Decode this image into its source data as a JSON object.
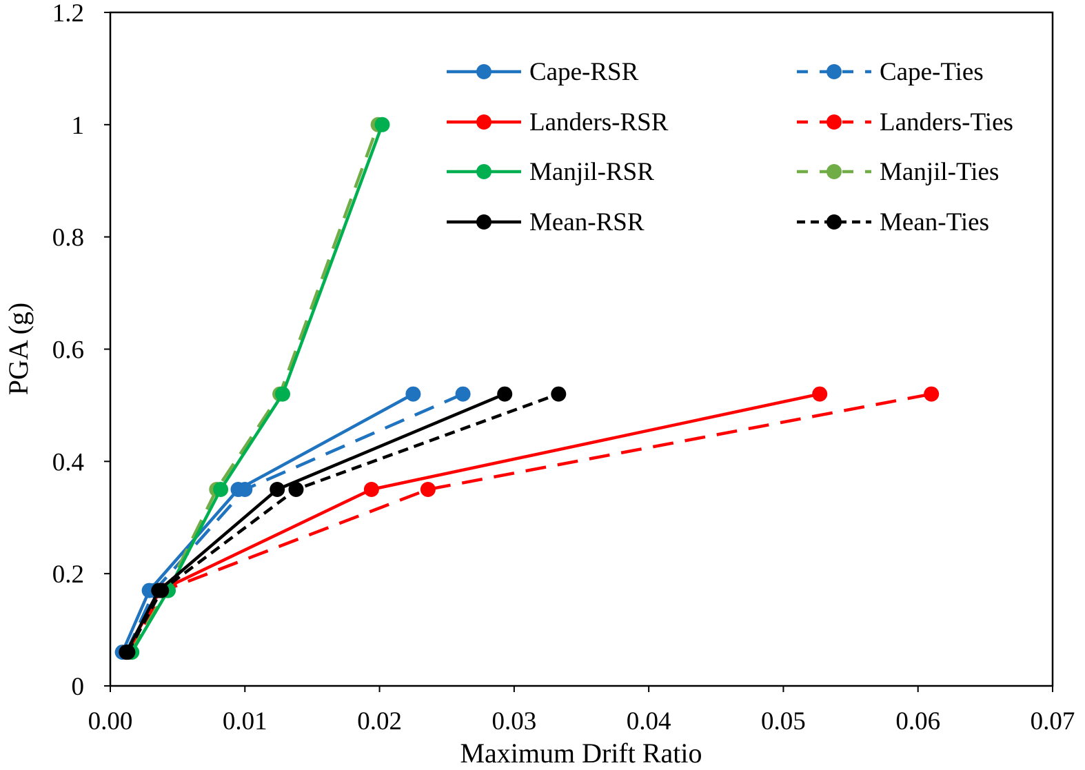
{
  "chart_data": {
    "type": "line",
    "title": "",
    "xlabel": "Maximum Drift Ratio",
    "ylabel": "PGA (g)",
    "xlim": [
      0,
      0.07
    ],
    "ylim": [
      0,
      1.2
    ],
    "x_ticks": [
      "0.00",
      "0.01",
      "0.02",
      "0.03",
      "0.04",
      "0.05",
      "0.06",
      "0.07"
    ],
    "y_ticks": [
      "0",
      "0.2",
      "0.4",
      "0.6",
      "0.8",
      "1",
      "1.2"
    ],
    "x_tick_values": [
      0,
      0.01,
      0.02,
      0.03,
      0.04,
      0.05,
      0.06,
      0.07
    ],
    "y_tick_values": [
      0,
      0.2,
      0.4,
      0.6,
      0.8,
      1.0,
      1.2
    ],
    "grid": false,
    "legend_position": "top-right",
    "series": [
      {
        "name": "Cape-RSR",
        "color": "#1f73bf",
        "dash": "solid",
        "x": [
          0.0009,
          0.0029,
          0.0095,
          0.0225
        ],
        "y": [
          0.06,
          0.17,
          0.35,
          0.52
        ]
      },
      {
        "name": "Cape-Ties",
        "color": "#1f73bf",
        "dash": "dashed",
        "x": [
          0.0012,
          0.0033,
          0.01,
          0.0262
        ],
        "y": [
          0.06,
          0.17,
          0.35,
          0.52
        ]
      },
      {
        "name": "Landers-RSR",
        "color": "#ff0000",
        "dash": "solid",
        "x": [
          0.0012,
          0.0037,
          0.0194,
          0.0527
        ],
        "y": [
          0.06,
          0.17,
          0.35,
          0.52
        ]
      },
      {
        "name": "Landers-Ties",
        "color": "#ff0000",
        "dash": "dashed",
        "x": [
          0.0013,
          0.004,
          0.0236,
          0.061
        ],
        "y": [
          0.06,
          0.17,
          0.35,
          0.52
        ]
      },
      {
        "name": "Manjil-RSR",
        "color": "#00b050",
        "dash": "solid",
        "x": [
          0.0016,
          0.0043,
          0.0082,
          0.0128,
          0.0202
        ],
        "y": [
          0.06,
          0.17,
          0.35,
          0.52,
          1.0
        ]
      },
      {
        "name": "Manjil-Ties",
        "color": "#70ad47",
        "dash": "dashed",
        "x": [
          0.0015,
          0.0042,
          0.0079,
          0.0126,
          0.0199
        ],
        "y": [
          0.06,
          0.17,
          0.35,
          0.52,
          1.0
        ]
      },
      {
        "name": "Mean-RSR",
        "color": "#000000",
        "dash": "solid",
        "x": [
          0.0012,
          0.0036,
          0.0124,
          0.0293
        ],
        "y": [
          0.06,
          0.17,
          0.35,
          0.52
        ]
      },
      {
        "name": "Mean-Ties",
        "color": "#000000",
        "dash": "shortdash",
        "x": [
          0.0013,
          0.0038,
          0.0138,
          0.0333
        ],
        "y": [
          0.06,
          0.17,
          0.35,
          0.52
        ]
      }
    ]
  }
}
